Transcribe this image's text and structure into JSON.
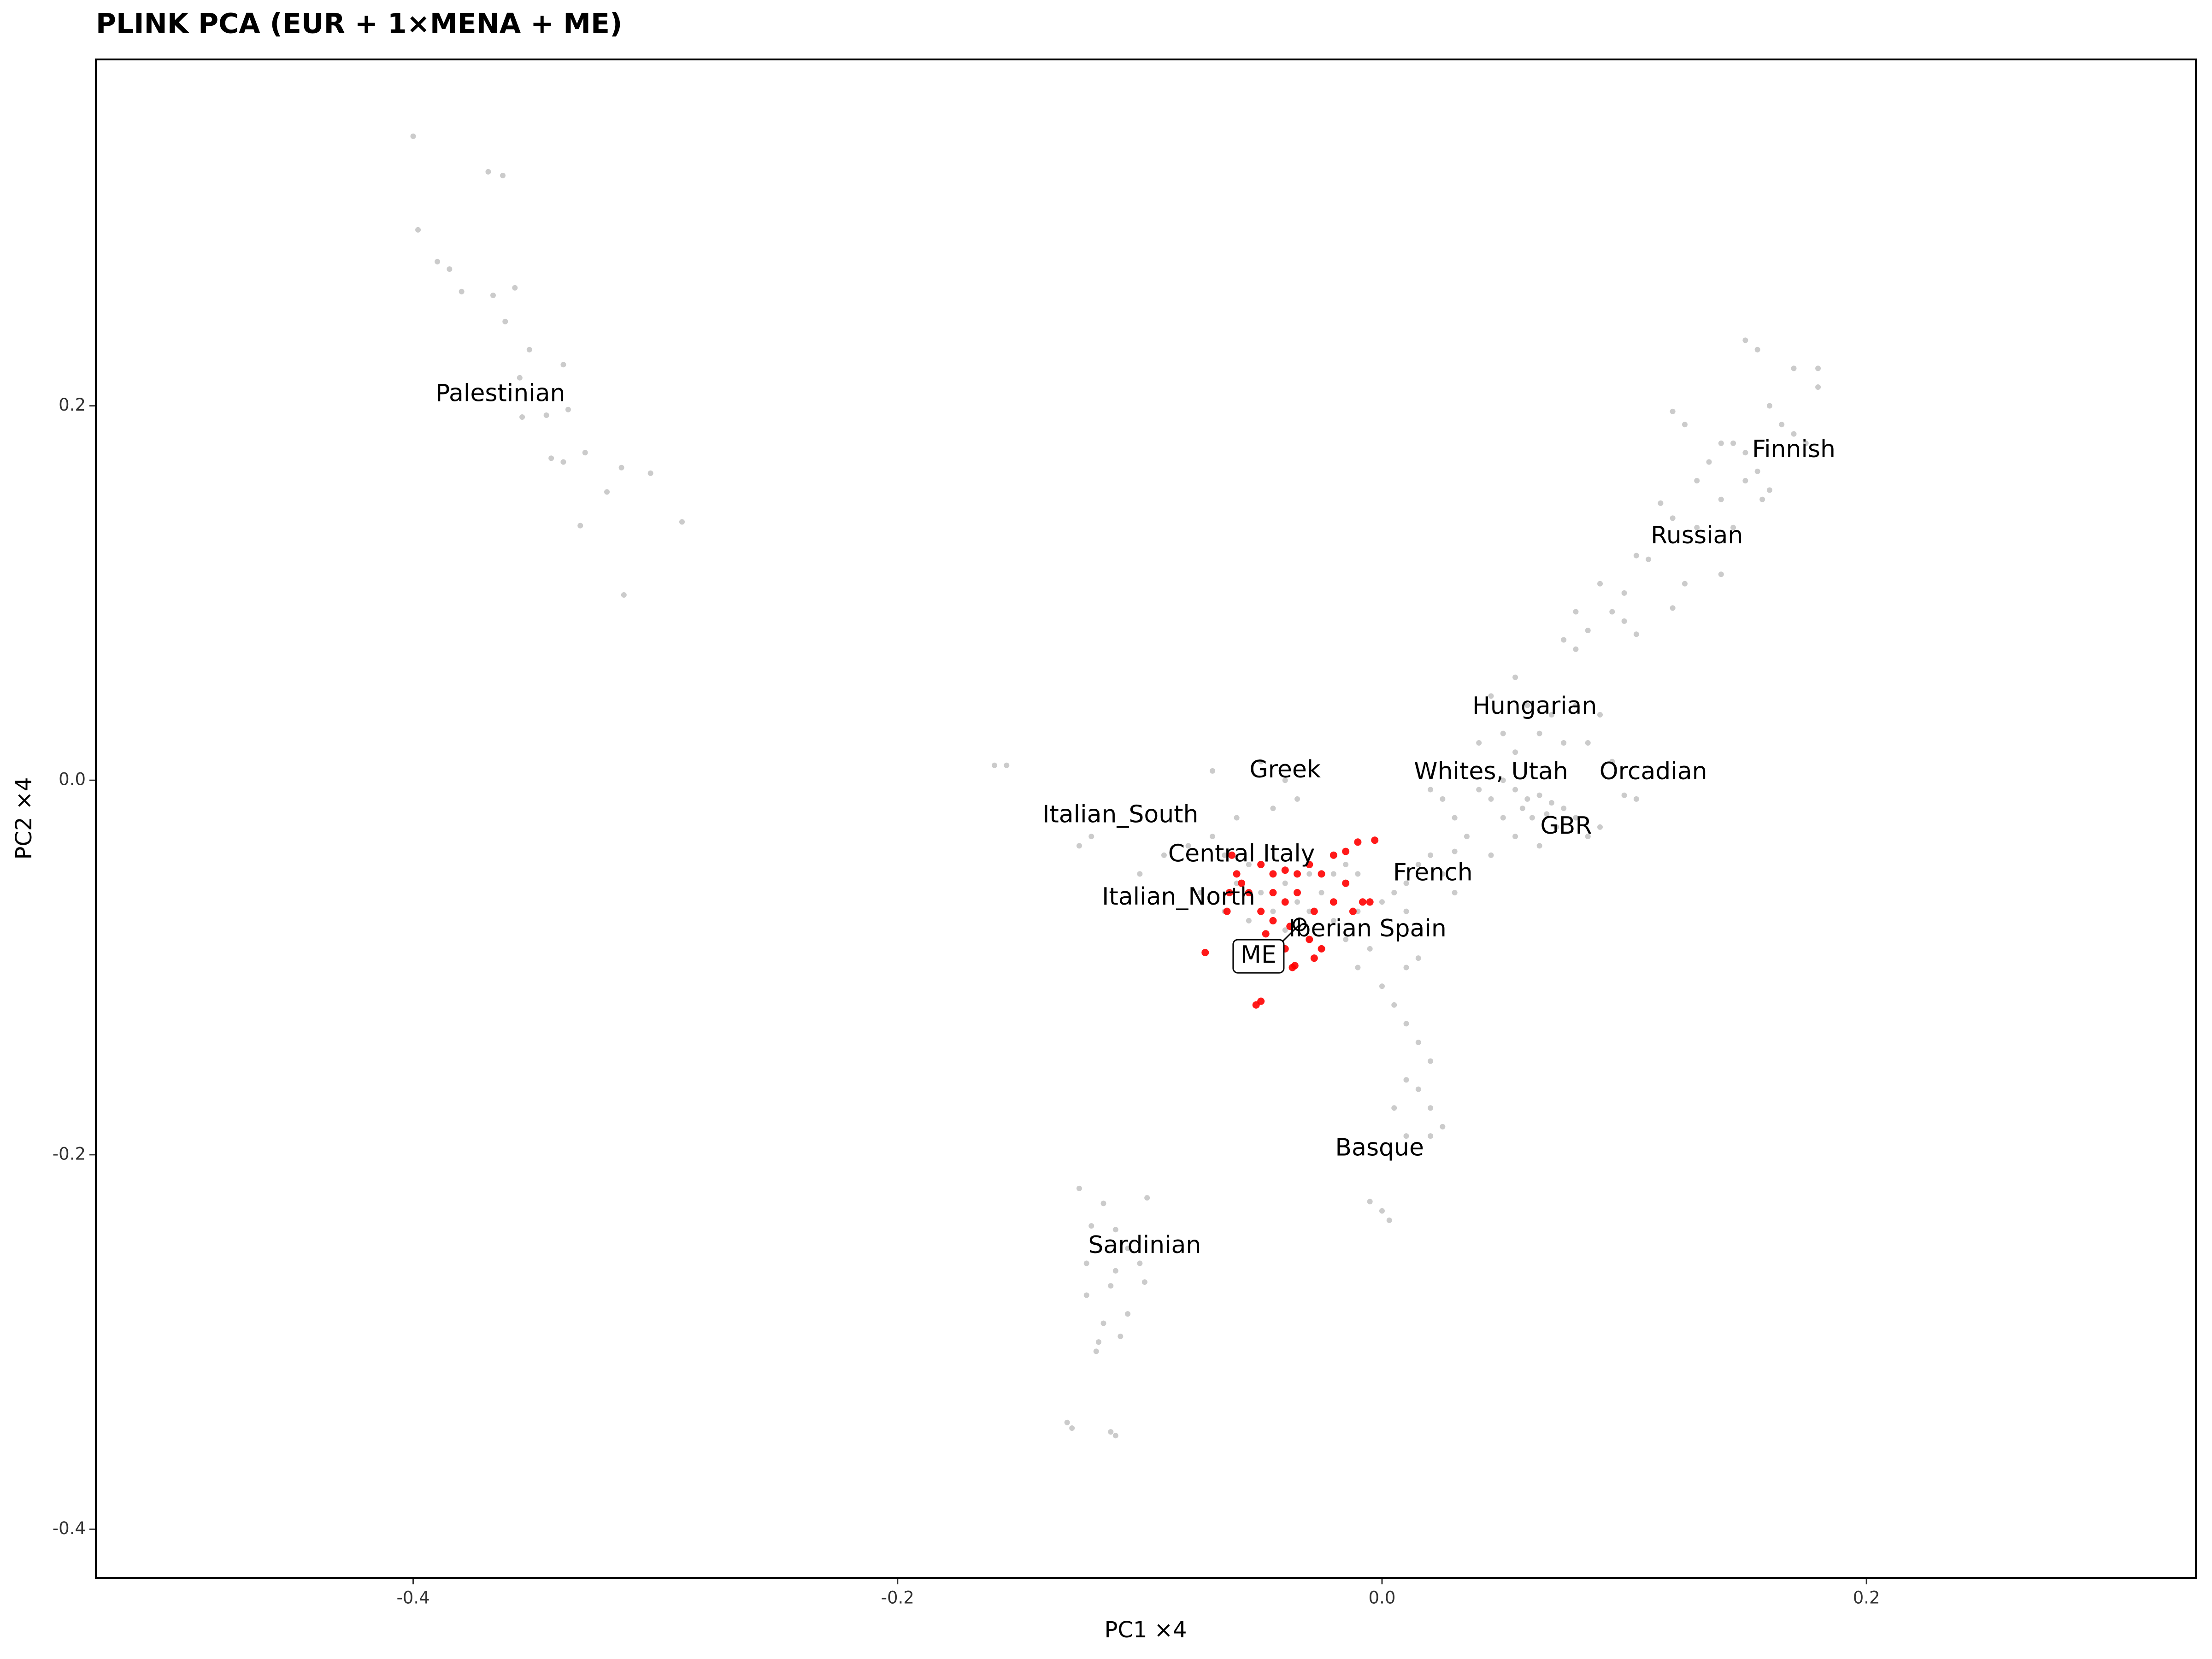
{
  "chart_data": {
    "type": "scatter",
    "title": "PLINK PCA (EUR + 1×MENA + ME)",
    "x_label": "PC1 ×4",
    "y_label": "PC2 ×4",
    "xlim": [
      -0.531,
      0.336
    ],
    "ylim": [
      -0.426,
      0.385
    ],
    "xticks": [
      -0.4,
      -0.2,
      {
        "value": 0,
        "label": "0.0"
      },
      0.2
    ],
    "yticks": [
      -0.4,
      -0.2,
      {
        "value": 0,
        "label": "0.0"
      },
      0.2
    ],
    "grid": false,
    "series": [
      {
        "color": "#8c8c8c",
        "x": [
          -0.4,
          -0.398,
          -0.39,
          -0.385,
          -0.38,
          -0.369,
          -0.363,
          -0.367,
          -0.358,
          -0.362,
          -0.352,
          -0.356,
          -0.338,
          -0.345,
          -0.355,
          -0.336,
          -0.343,
          -0.338,
          -0.329,
          -0.32,
          -0.314,
          -0.331,
          -0.313,
          -0.289,
          -0.302
        ],
        "values": [
          0.344,
          0.294,
          0.277,
          0.273,
          0.261,
          0.325,
          0.323,
          0.259,
          0.263,
          0.245,
          0.23,
          0.215,
          0.222,
          0.195,
          0.194,
          0.198,
          0.172,
          0.17,
          0.175,
          0.154,
          0.167,
          0.136,
          0.099,
          0.138,
          0.164
        ]
      },
      {
        "color": "#8c8c8c",
        "x": [
          0.15,
          0.155,
          0.17,
          0.18,
          0.18,
          0.16,
          0.12,
          0.125,
          0.14,
          0.145,
          0.15,
          0.165,
          0.17,
          0.175,
          0.155,
          0.16,
          0.157,
          0.15,
          0.135,
          0.13,
          0.14,
          0.115,
          0.12,
          0.13,
          0.145,
          0.14,
          0.125,
          0.11,
          0.105,
          0.09,
          0.1,
          0.095,
          0.08,
          0.085,
          0.075,
          0.08,
          0.1,
          0.12,
          0.105
        ],
        "values": [
          0.235,
          0.23,
          0.22,
          0.22,
          0.21,
          0.2,
          0.197,
          0.19,
          0.18,
          0.18,
          0.175,
          0.19,
          0.185,
          0.18,
          0.165,
          0.155,
          0.15,
          0.16,
          0.17,
          0.16,
          0.15,
          0.148,
          0.14,
          0.135,
          0.135,
          0.11,
          0.105,
          0.118,
          0.12,
          0.105,
          0.1,
          0.09,
          0.09,
          0.08,
          0.075,
          0.07,
          0.085,
          0.092,
          0.078
        ]
      },
      {
        "color": "#8c8c8c",
        "x": [
          0.055,
          0.045,
          0.06,
          0.07,
          0.08,
          0.09,
          0.05,
          0.065,
          0.075,
          0.085,
          0.04,
          0.055
        ],
        "values": [
          0.055,
          0.045,
          0.04,
          0.035,
          0.04,
          0.035,
          0.025,
          0.025,
          0.02,
          0.02,
          0.02,
          0.015
        ]
      },
      {
        "color": "#8c8c8c",
        "x": [
          0.05,
          0.055,
          0.06,
          0.065,
          0.07,
          0.058,
          0.062,
          0.068,
          0.075,
          0.08,
          0.045,
          0.04,
          0.05,
          0.072,
          0.085,
          0.09,
          0.1,
          0.105,
          0.095,
          0.035,
          0.03,
          0.025,
          0.02,
          0.055,
          0.065,
          0.045
        ],
        "values": [
          0.0,
          -0.005,
          -0.01,
          -0.008,
          -0.012,
          -0.015,
          -0.02,
          -0.018,
          -0.015,
          -0.02,
          -0.01,
          -0.005,
          -0.02,
          -0.025,
          -0.03,
          -0.025,
          -0.008,
          -0.01,
          0.01,
          -0.03,
          -0.02,
          -0.01,
          -0.005,
          -0.03,
          -0.035,
          -0.04
        ]
      },
      {
        "color": "#8c8c8c",
        "x": [
          0.02,
          0.015,
          0.025,
          0.01,
          0.03,
          0.005,
          0.03,
          0.0,
          0.01
        ],
        "values": [
          -0.04,
          -0.045,
          -0.05,
          -0.055,
          -0.038,
          -0.06,
          -0.06,
          -0.065,
          -0.07
        ]
      },
      {
        "color": "#8c8c8c",
        "x": [
          -0.01,
          -0.02,
          -0.015,
          -0.005,
          -0.025,
          -0.03,
          -0.01,
          0.0,
          0.01,
          0.015,
          0.005,
          0.01,
          0.015,
          0.02,
          0.01,
          0.015,
          0.02,
          0.025,
          0.02,
          0.01,
          0.005,
          -0.005,
          0.003,
          0.0
        ],
        "values": [
          -0.07,
          -0.075,
          -0.085,
          -0.09,
          -0.09,
          -0.085,
          -0.1,
          -0.11,
          -0.1,
          -0.095,
          -0.12,
          -0.13,
          -0.14,
          -0.15,
          -0.16,
          -0.165,
          -0.175,
          -0.185,
          -0.19,
          -0.19,
          -0.175,
          -0.225,
          -0.235,
          -0.23
        ]
      },
      {
        "color": "#8c8c8c",
        "x": [
          -0.04,
          -0.05,
          -0.06,
          -0.045,
          -0.035,
          -0.07,
          -0.08,
          -0.09,
          -0.1,
          -0.12,
          -0.125,
          -0.155,
          -0.16,
          -0.065,
          -0.055,
          -0.06,
          -0.05,
          -0.045,
          -0.04,
          -0.035,
          -0.03,
          -0.025,
          -0.02,
          -0.015,
          -0.01,
          -0.07,
          -0.075,
          -0.065,
          -0.055,
          -0.04,
          -0.03
        ],
        "values": [
          0.0,
          0.01,
          -0.02,
          -0.015,
          -0.01,
          -0.03,
          -0.035,
          -0.04,
          -0.05,
          -0.03,
          -0.035,
          0.008,
          0.008,
          -0.04,
          -0.045,
          -0.055,
          -0.06,
          -0.07,
          -0.055,
          -0.065,
          -0.05,
          -0.06,
          -0.05,
          -0.045,
          -0.05,
          0.005,
          -0.06,
          -0.07,
          -0.075,
          -0.08,
          -0.07
        ]
      },
      {
        "color": "#8c8c8c",
        "x": [
          -0.125,
          -0.115,
          -0.097,
          -0.12,
          -0.11,
          -0.105,
          -0.122,
          -0.11,
          -0.1,
          -0.112,
          -0.098,
          -0.122,
          -0.105,
          -0.115,
          -0.108,
          -0.118,
          -0.117,
          -0.13,
          -0.128,
          -0.11,
          -0.112
        ],
        "values": [
          -0.218,
          -0.226,
          -0.223,
          -0.238,
          -0.24,
          -0.25,
          -0.258,
          -0.262,
          -0.258,
          -0.27,
          -0.268,
          -0.275,
          -0.285,
          -0.29,
          -0.297,
          -0.305,
          -0.3,
          -0.343,
          -0.346,
          -0.35,
          -0.348
        ]
      },
      {
        "color": "#ff0000",
        "x": [
          -0.062,
          -0.06,
          -0.058,
          -0.063,
          -0.055,
          -0.064,
          -0.05,
          -0.045,
          -0.04,
          -0.035,
          -0.03,
          -0.025,
          -0.02,
          -0.015,
          -0.01,
          -0.003,
          -0.045,
          -0.04,
          -0.035,
          -0.028,
          -0.02,
          -0.015,
          -0.012,
          -0.008,
          -0.005,
          -0.05,
          -0.045,
          -0.038,
          -0.048,
          -0.04,
          -0.03,
          -0.025,
          -0.028,
          -0.055,
          -0.045,
          -0.037,
          -0.073,
          -0.052,
          -0.05,
          -0.036
        ],
        "values": [
          -0.04,
          -0.05,
          -0.055,
          -0.06,
          -0.06,
          -0.07,
          -0.045,
          -0.05,
          -0.048,
          -0.05,
          -0.045,
          -0.05,
          -0.04,
          -0.038,
          -0.033,
          -0.032,
          -0.06,
          -0.065,
          -0.06,
          -0.07,
          -0.065,
          -0.055,
          -0.07,
          -0.065,
          -0.065,
          -0.07,
          -0.075,
          -0.078,
          -0.082,
          -0.09,
          -0.085,
          -0.09,
          -0.095,
          -0.098,
          -0.1,
          -0.1,
          -0.092,
          -0.12,
          -0.118,
          -0.099
        ]
      }
    ],
    "annotations": [
      {
        "text": "Palestinian",
        "x": -0.364,
        "y": 0.206
      },
      {
        "text": "Finnish",
        "x": 0.17,
        "y": 0.176
      },
      {
        "text": "Russian",
        "x": 0.13,
        "y": 0.13
      },
      {
        "text": "Hungarian",
        "x": 0.063,
        "y": 0.039
      },
      {
        "text": "Greek",
        "x": -0.04,
        "y": 0.005
      },
      {
        "text": "Whites, Utah",
        "x": 0.045,
        "y": 0.004
      },
      {
        "text": "Orcadian",
        "x": 0.112,
        "y": 0.004
      },
      {
        "text": "Italian_South",
        "x": -0.108,
        "y": -0.019
      },
      {
        "text": "GBR",
        "x": 0.076,
        "y": -0.025
      },
      {
        "text": "Central Italy",
        "x": -0.058,
        "y": -0.04
      },
      {
        "text": "French",
        "x": 0.021,
        "y": -0.05
      },
      {
        "text": "Italian_North",
        "x": -0.084,
        "y": -0.063
      },
      {
        "text": "Iberian Spain",
        "x": -0.006,
        "y": -0.08
      },
      {
        "text": "Basque",
        "x": -0.001,
        "y": -0.197
      },
      {
        "text": "Sardinian",
        "x": -0.098,
        "y": -0.249
      }
    ],
    "target": {
      "label": "ME",
      "x": -0.034,
      "y": -0.077,
      "label_x": -0.051,
      "label_y": -0.094
    }
  }
}
